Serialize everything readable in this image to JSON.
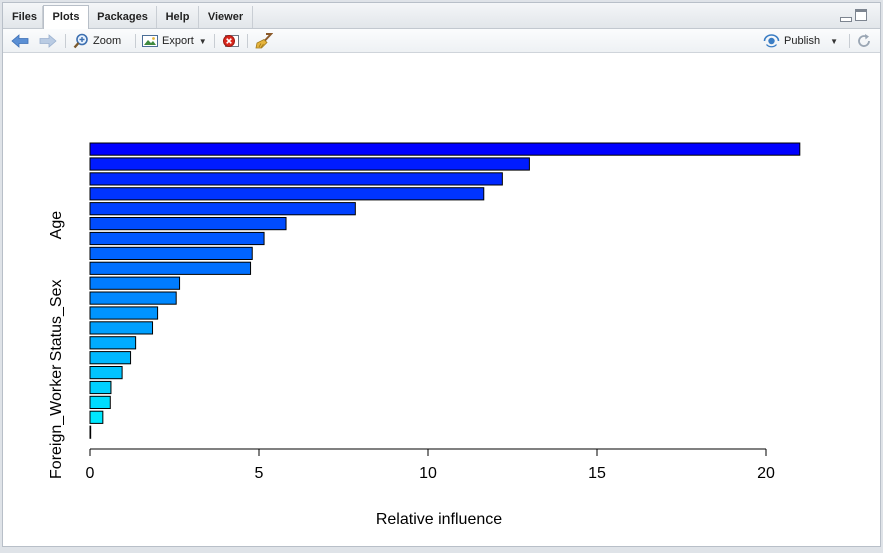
{
  "tabs": [
    {
      "label": "Files",
      "active": false
    },
    {
      "label": "Plots",
      "active": true
    },
    {
      "label": "Packages",
      "active": false
    },
    {
      "label": "Help",
      "active": false
    },
    {
      "label": "Viewer",
      "active": false
    }
  ],
  "toolbar": {
    "back_icon": "arrow-left-icon",
    "forward_icon": "arrow-right-icon",
    "zoom_label": "Zoom",
    "export_label": "Export",
    "remove_icon": "remove-plot-icon",
    "clear_icon": "broom-icon",
    "publish_label": "Publish",
    "refresh_icon": "refresh-icon"
  },
  "chart_data": {
    "type": "bar",
    "orientation": "horizontal",
    "xlabel": "Relative influence",
    "ylabel": "",
    "xlim": [
      0,
      21
    ],
    "x_ticks": [
      0,
      5,
      10,
      15,
      20
    ],
    "visible_category_labels": [
      "Age",
      "Status_Sex",
      "Foreign_Worker"
    ],
    "values": [
      21.0,
      13.0,
      12.2,
      11.65,
      7.85,
      5.8,
      5.15,
      4.8,
      4.75,
      2.65,
      2.55,
      2.0,
      1.85,
      1.35,
      1.2,
      0.95,
      0.62,
      0.6,
      0.38,
      0.02
    ],
    "colors": [
      "#0000ff",
      "#001cff",
      "#0028ff",
      "#0034ff",
      "#0040ff",
      "#004cff",
      "#0058ff",
      "#0064ff",
      "#0070ff",
      "#007cff",
      "#0088ff",
      "#0094ff",
      "#00a0ff",
      "#00acff",
      "#00b8ff",
      "#00c4ff",
      "#00d0ff",
      "#00dcff",
      "#00e8ff",
      "#00f4ff"
    ],
    "grid": false,
    "legend": "none"
  }
}
